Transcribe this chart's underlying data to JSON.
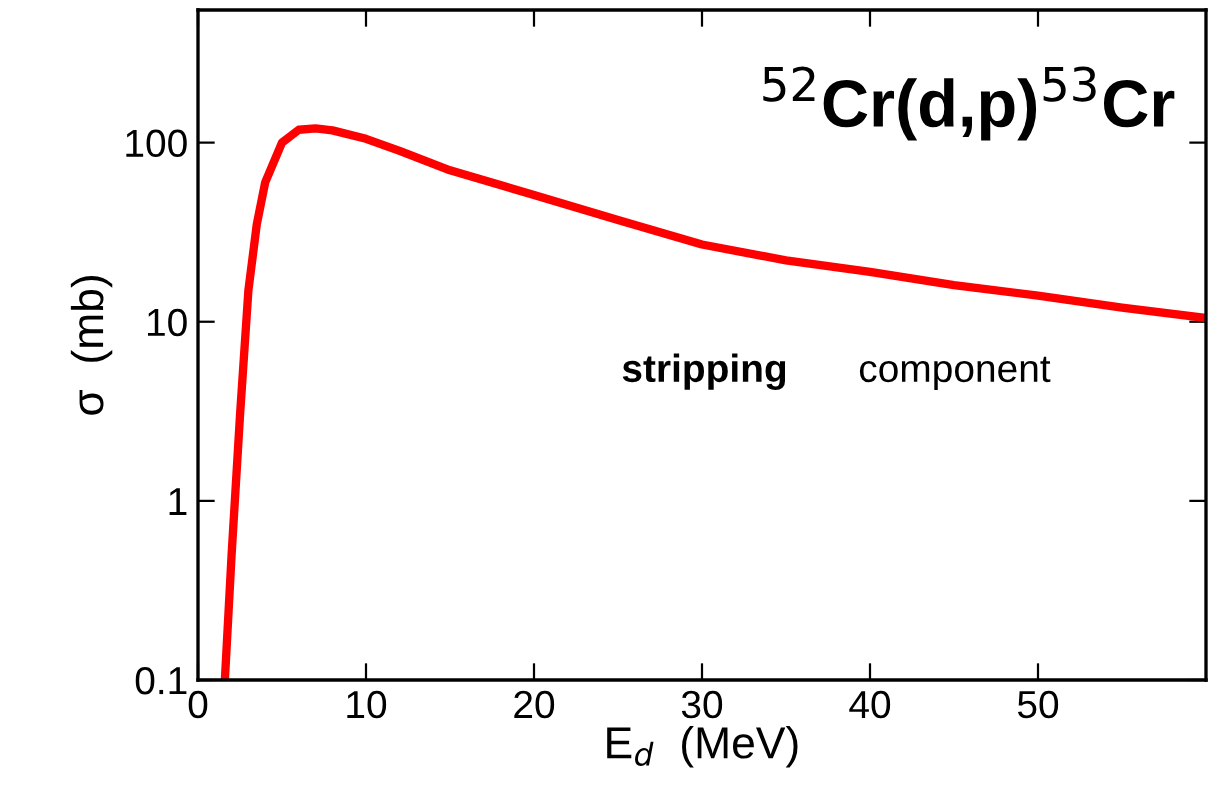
{
  "chart_data": {
    "type": "line",
    "xlabel": "E$_{d}$  (MeV)",
    "ylabel": "σ  (mb)",
    "log": "y",
    "xlim": [
      0,
      60
    ],
    "xticks": [
      0,
      10,
      20,
      30,
      40,
      50
    ],
    "ylim": [
      0.1,
      550
    ],
    "yticks": [
      0.1,
      1,
      10,
      100
    ],
    "annotations": [
      "$^{52}$Cr(d,p)$^{53}$Cr",
      "stripping",
      "component"
    ],
    "grid": false,
    "legend": false,
    "marker": "none",
    "line_style": "solid",
    "series": [
      {
        "color": "#ff0000",
        "x": [
          1.6,
          2,
          2.5,
          3,
          3.5,
          4,
          5,
          6,
          7,
          8,
          10,
          12,
          15,
          20,
          25,
          30,
          35,
          40,
          45,
          50,
          55,
          60
        ],
        "values": [
          0.1,
          0.5,
          3,
          15,
          35,
          60,
          100,
          118,
          120,
          117,
          105,
          90,
          70,
          51,
          37,
          27,
          22,
          19,
          16,
          14,
          12,
          10.5
        ]
      }
    ]
  }
}
